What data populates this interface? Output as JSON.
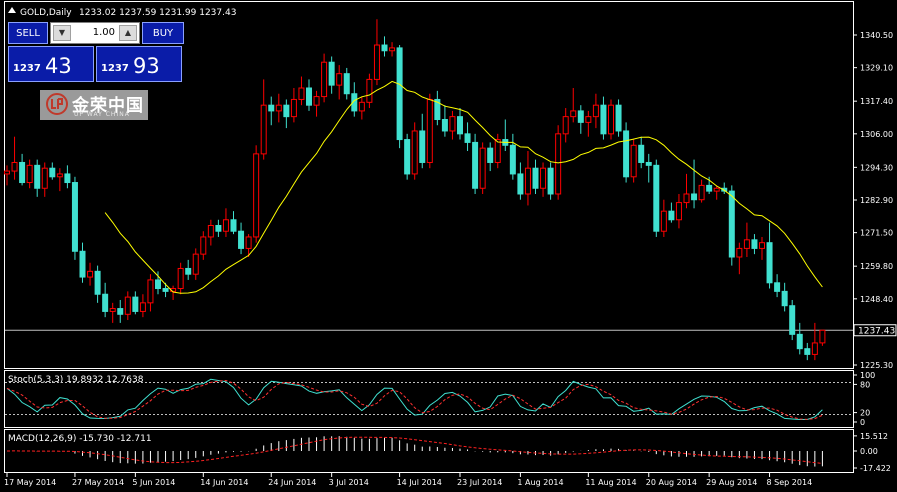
{
  "header": {
    "symbol": "GOLD,Daily",
    "ohlc": "1233.02 1237.59 1231.99 1237.43"
  },
  "trade_panel": {
    "sell_label": "SELL",
    "buy_label": "BUY",
    "lot_value": "1.00",
    "bid_prefix": "1237",
    "bid_big": "43",
    "ask_prefix": "1237",
    "ask_big": "93"
  },
  "logo": {
    "cn": "金荣中国",
    "en": "UP WAY CHINA"
  },
  "colors": {
    "background": "#000000",
    "bull_candle": "#ff0000",
    "bear_candle": "#40e0d0",
    "ma_line": "#ffff00",
    "stoch_main": "#40e0d0",
    "stoch_signal": "#ff3030",
    "macd_hist": "#ffffff",
    "macd_signal": "#ff2020",
    "grid_text": "#ffffff",
    "price_line": "#c0c0c0"
  },
  "chart_data": [
    {
      "type": "candlestick",
      "title": "GOLD,Daily",
      "ylim": [
        1220,
        1348
      ],
      "price_ticks": [
        1340.5,
        1329.1,
        1317.4,
        1306.0,
        1294.3,
        1282.9,
        1271.5,
        1259.8,
        1248.4,
        1225.3
      ],
      "price_tick_labels": [
        "1340.50",
        "1329.10",
        "1317.40",
        "1306.00",
        "1294.30",
        "1282.90",
        "1271.50",
        "1259.80",
        "1248.40",
        "1225.30"
      ],
      "current_price": 1237.43,
      "current_price_label": "1237.43",
      "x_labels": [
        "17 May 2014",
        "27 May 2014",
        "5 Jun 2014",
        "14 Jun 2014",
        "24 Jun 2014",
        "3 Jul 2014",
        "14 Jul 2014",
        "23 Jul 2014",
        "1 Aug 2014",
        "11 Aug 2014",
        "20 Aug 2014",
        "29 Aug 2014",
        "8 Sep 2014"
      ],
      "x_label_bar_index": [
        0,
        9,
        17,
        26,
        35,
        43,
        52,
        60,
        68,
        77,
        85,
        93,
        101
      ],
      "ma_period": 14,
      "candles": [
        [
          1292.0,
          1295.0,
          1288.0,
          1293.0
        ],
        [
          1293.0,
          1305.0,
          1290.0,
          1296.0
        ],
        [
          1296.0,
          1299.0,
          1288.0,
          1289.0
        ],
        [
          1289.0,
          1297.0,
          1287.0,
          1295.0
        ],
        [
          1295.0,
          1297.0,
          1284.0,
          1287.0
        ],
        [
          1287.0,
          1296.0,
          1284.0,
          1294.0
        ],
        [
          1294.0,
          1296.0,
          1290.0,
          1291.0
        ],
        [
          1291.0,
          1294.0,
          1286.0,
          1292.0
        ],
        [
          1292.0,
          1295.0,
          1287.0,
          1289.0
        ],
        [
          1289.0,
          1291.0,
          1262.0,
          1265.0
        ],
        [
          1265.0,
          1268.0,
          1254.0,
          1256.0
        ],
        [
          1256.0,
          1261.0,
          1253.0,
          1258.0
        ],
        [
          1258.0,
          1260.0,
          1247.0,
          1250.0
        ],
        [
          1250.0,
          1254.0,
          1242.0,
          1244.0
        ],
        [
          1244.0,
          1247.0,
          1240.0,
          1245.0
        ],
        [
          1245.0,
          1248.0,
          1240.0,
          1243.0
        ],
        [
          1243.0,
          1251.0,
          1241.0,
          1249.0
        ],
        [
          1249.0,
          1251.0,
          1243.0,
          1244.0
        ],
        [
          1244.0,
          1250.0,
          1242.0,
          1247.0
        ],
        [
          1247.0,
          1257.0,
          1244.0,
          1255.0
        ],
        [
          1255.0,
          1258.0,
          1250.0,
          1252.0
        ],
        [
          1252.0,
          1254.0,
          1249.0,
          1251.0
        ],
        [
          1251.0,
          1253.0,
          1248.0,
          1252.0
        ],
        [
          1252.0,
          1261.0,
          1250.0,
          1259.0
        ],
        [
          1259.0,
          1262.0,
          1255.0,
          1257.0
        ],
        [
          1257.0,
          1266.0,
          1255.0,
          1264.0
        ],
        [
          1264.0,
          1272.0,
          1262.0,
          1270.0
        ],
        [
          1270.0,
          1276.0,
          1267.0,
          1274.0
        ],
        [
          1274.0,
          1276.0,
          1270.0,
          1272.0
        ],
        [
          1272.0,
          1280.0,
          1270.0,
          1276.0
        ],
        [
          1276.0,
          1279.0,
          1271.0,
          1272.0
        ],
        [
          1272.0,
          1275.0,
          1264.0,
          1266.0
        ],
        [
          1266.0,
          1271.0,
          1263.0,
          1270.0
        ],
        [
          1270.0,
          1302.0,
          1268.0,
          1299.0
        ],
        [
          1299.0,
          1325.0,
          1297.0,
          1316.0
        ],
        [
          1316.0,
          1319.0,
          1309.0,
          1314.0
        ],
        [
          1314.0,
          1320.0,
          1310.0,
          1316.0
        ],
        [
          1316.0,
          1318.0,
          1308.0,
          1312.0
        ],
        [
          1312.0,
          1322.0,
          1310.0,
          1318.0
        ],
        [
          1318.0,
          1326.0,
          1316.0,
          1322.0
        ],
        [
          1322.0,
          1325.0,
          1314.0,
          1316.0
        ],
        [
          1316.0,
          1321.0,
          1312.0,
          1319.0
        ],
        [
          1319.0,
          1334.0,
          1317.0,
          1331.0
        ],
        [
          1331.0,
          1333.0,
          1320.0,
          1323.0
        ],
        [
          1323.0,
          1330.0,
          1318.0,
          1327.0
        ],
        [
          1327.0,
          1329.0,
          1318.0,
          1320.0
        ],
        [
          1320.0,
          1324.0,
          1312.0,
          1314.0
        ],
        [
          1314.0,
          1319.0,
          1311.0,
          1317.0
        ],
        [
          1317.0,
          1327.0,
          1315.0,
          1325.0
        ],
        [
          1325.0,
          1346.0,
          1323.0,
          1337.0
        ],
        [
          1337.0,
          1340.0,
          1333.0,
          1335.0
        ],
        [
          1335.0,
          1338.0,
          1333.0,
          1336.0
        ],
        [
          1336.0,
          1337.0,
          1301.0,
          1304.0
        ],
        [
          1304.0,
          1306.0,
          1290.0,
          1292.0
        ],
        [
          1292.0,
          1310.0,
          1290.0,
          1307.0
        ],
        [
          1307.0,
          1313.0,
          1294.0,
          1296.0
        ],
        [
          1296.0,
          1320.0,
          1294.0,
          1318.0
        ],
        [
          1318.0,
          1321.0,
          1309.0,
          1311.0
        ],
        [
          1311.0,
          1316.0,
          1305.0,
          1307.0
        ],
        [
          1307.0,
          1314.0,
          1304.0,
          1312.0
        ],
        [
          1312.0,
          1315.0,
          1304.0,
          1306.0
        ],
        [
          1306.0,
          1310.0,
          1300.0,
          1303.0
        ],
        [
          1303.0,
          1306.0,
          1285.0,
          1287.0
        ],
        [
          1287.0,
          1303.0,
          1285.0,
          1301.0
        ],
        [
          1301.0,
          1303.0,
          1293.0,
          1296.0
        ],
        [
          1296.0,
          1306.0,
          1294.0,
          1304.0
        ],
        [
          1304.0,
          1311.0,
          1300.0,
          1302.0
        ],
        [
          1302.0,
          1306.0,
          1290.0,
          1292.0
        ],
        [
          1292.0,
          1296.0,
          1283.0,
          1285.0
        ],
        [
          1285.0,
          1300.0,
          1281.0,
          1294.0
        ],
        [
          1294.0,
          1297.0,
          1285.0,
          1287.0
        ],
        [
          1287.0,
          1296.0,
          1284.0,
          1294.0
        ],
        [
          1294.0,
          1296.0,
          1283.0,
          1285.0
        ],
        [
          1285.0,
          1309.0,
          1283.0,
          1306.0
        ],
        [
          1306.0,
          1315.0,
          1303.0,
          1312.0
        ],
        [
          1312.0,
          1322.0,
          1310.0,
          1314.0
        ],
        [
          1314.0,
          1316.0,
          1306.0,
          1310.0
        ],
        [
          1310.0,
          1314.0,
          1305.0,
          1312.0
        ],
        [
          1312.0,
          1320.0,
          1308.0,
          1316.0
        ],
        [
          1316.0,
          1319.0,
          1304.0,
          1306.0
        ],
        [
          1306.0,
          1318.0,
          1304.0,
          1316.0
        ],
        [
          1316.0,
          1318.0,
          1305.0,
          1307.0
        ],
        [
          1307.0,
          1310.0,
          1289.0,
          1291.0
        ],
        [
          1291.0,
          1304.0,
          1289.0,
          1302.0
        ],
        [
          1302.0,
          1305.0,
          1294.0,
          1296.0
        ],
        [
          1296.0,
          1299.0,
          1289.0,
          1295.0
        ],
        [
          1295.0,
          1297.0,
          1270.0,
          1272.0
        ],
        [
          1272.0,
          1283.0,
          1270.0,
          1279.0
        ],
        [
          1279.0,
          1282.0,
          1275.0,
          1276.0
        ],
        [
          1276.0,
          1285.0,
          1273.0,
          1282.0
        ],
        [
          1282.0,
          1292.0,
          1280.0,
          1285.0
        ],
        [
          1285.0,
          1297.0,
          1280.0,
          1283.0
        ],
        [
          1283.0,
          1290.0,
          1282.0,
          1288.0
        ],
        [
          1288.0,
          1291.0,
          1285.0,
          1286.0
        ],
        [
          1286.0,
          1288.0,
          1283.0,
          1287.0
        ],
        [
          1287.0,
          1289.0,
          1285.0,
          1286.0
        ],
        [
          1286.0,
          1288.0,
          1260.0,
          1263.0
        ],
        [
          1263.0,
          1268.0,
          1257.0,
          1266.0
        ],
        [
          1266.0,
          1275.0,
          1263.0,
          1269.0
        ],
        [
          1269.0,
          1271.0,
          1264.0,
          1266.0
        ],
        [
          1266.0,
          1270.0,
          1262.0,
          1268.0
        ],
        [
          1268.0,
          1275.0,
          1252.0,
          1254.0
        ],
        [
          1254.0,
          1257.0,
          1249.0,
          1251.0
        ],
        [
          1251.0,
          1254.0,
          1244.0,
          1246.0
        ],
        [
          1246.0,
          1248.0,
          1234.0,
          1236.0
        ],
        [
          1236.0,
          1240.0,
          1229.0,
          1231.0
        ],
        [
          1231.0,
          1233.0,
          1227.0,
          1229.0
        ],
        [
          1229.0,
          1240.0,
          1227.0,
          1233.0
        ],
        [
          1233.02,
          1237.59,
          1231.99,
          1237.43
        ]
      ]
    },
    {
      "type": "line",
      "title": "Stoch(5,3,3) 19.8932 12.7638",
      "ylim": [
        0,
        100
      ],
      "levels": [
        80,
        20
      ],
      "tick_labels": [
        "100",
        "80",
        "20",
        "0"
      ]
    },
    {
      "type": "bar",
      "title": "MACD(12,26,9) -15.730 -12.711",
      "tick_labels": [
        "15.512",
        "0.00",
        "-17.422"
      ]
    }
  ]
}
